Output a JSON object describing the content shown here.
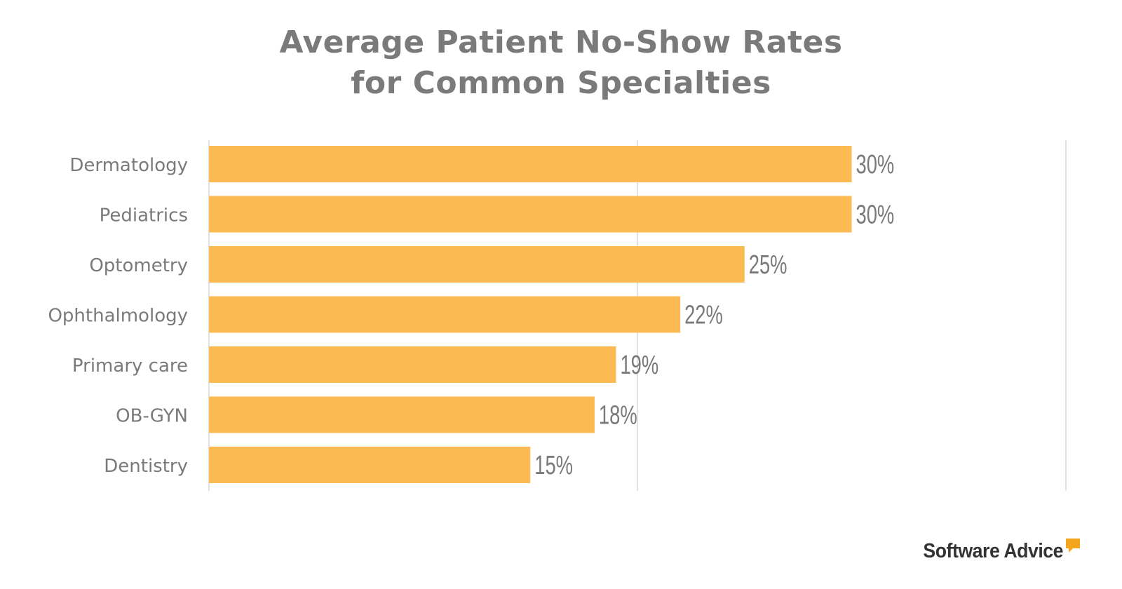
{
  "colors": {
    "bar": "#FBBB52",
    "text": "#7a7a7a",
    "grid": "#d9d9d9",
    "logo_text": "#333333",
    "logo_accent": "#F5A51C"
  },
  "title_lines": [
    "Average Patient No-Show Rates",
    "for Common Specialties"
  ],
  "logo": {
    "text": "Software Advice",
    "icon": "speech-bubble-icon"
  },
  "chart_data": {
    "type": "bar",
    "orientation": "horizontal",
    "title": "Average Patient No-Show Rates for Common Specialties",
    "categories": [
      "Dermatology",
      "Pediatrics",
      "Optometry",
      "Ophthalmology",
      "Primary care",
      "OB-GYN",
      "Dentistry"
    ],
    "values": [
      30,
      30,
      25,
      22,
      19,
      18,
      15
    ],
    "data_labels": [
      "30%",
      "30%",
      "25%",
      "22%",
      "19%",
      "18%",
      "15%"
    ],
    "xlim": [
      0,
      40
    ],
    "gridlines": [
      0,
      20,
      40
    ],
    "grid": true,
    "legend": "none"
  }
}
